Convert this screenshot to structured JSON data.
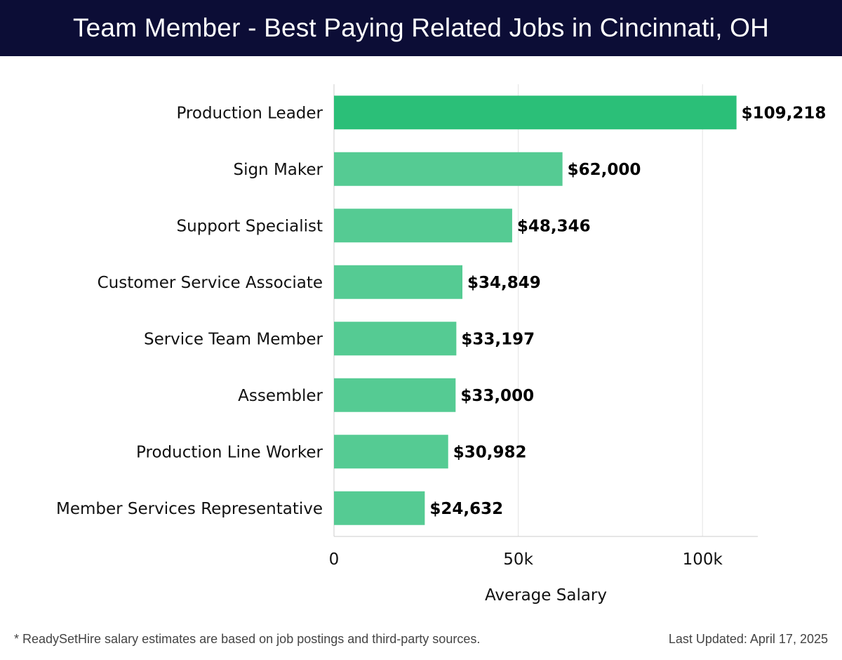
{
  "header": {
    "title": "Team Member - Best Paying Related Jobs in Cincinnati, OH"
  },
  "chart_data": {
    "type": "bar",
    "orientation": "horizontal",
    "title": "Team Member - Best Paying Related Jobs in Cincinnati, OH",
    "categories": [
      "Production Leader",
      "Sign Maker",
      "Support Specialist",
      "Customer Service Associate",
      "Service Team Member",
      "Assembler",
      "Production Line Worker",
      "Member Services Representative"
    ],
    "values": [
      109218,
      62000,
      48346,
      34849,
      33197,
      33000,
      30982,
      24632
    ],
    "value_labels": [
      "$109,218",
      "$62,000",
      "$48,346",
      "$34,849",
      "$33,197",
      "$33,000",
      "$30,982",
      "$24,632"
    ],
    "xlabel": "Average Salary",
    "ylabel": "",
    "xlim": [
      0,
      115000
    ],
    "xticks": [
      0,
      50000,
      100000
    ],
    "xtick_labels": [
      "0",
      "50k",
      "100k"
    ],
    "grid": true,
    "colors": {
      "highlight": "#2bbf78",
      "bar": "#55cb93",
      "grid": "#e3e3e3",
      "axis": "#cccccc",
      "text": "#111111"
    }
  },
  "footer": {
    "note": "* ReadySetHire salary estimates are based on job postings and third-party sources.",
    "updated": "Last Updated: April 17, 2025"
  }
}
